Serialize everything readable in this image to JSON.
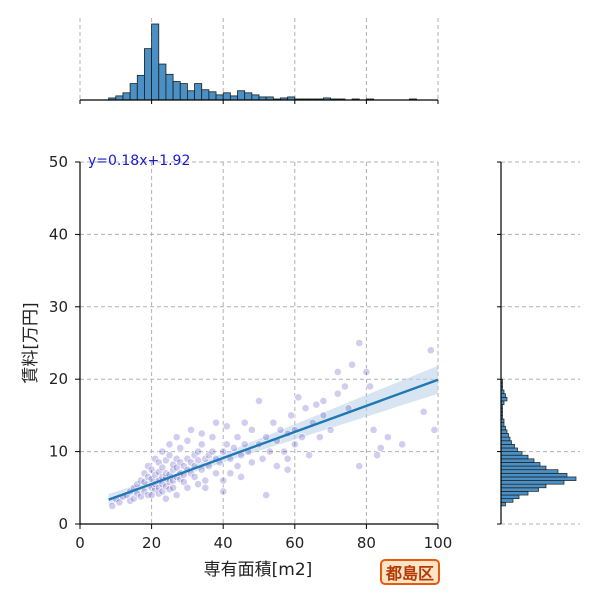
{
  "badge": {
    "label": "都島区"
  },
  "colors": {
    "hist_fill": "#4a90c4",
    "scatter": "#2a1ab0",
    "fit_line": "#1f77b4",
    "fit_band": "#bcd3ea",
    "badge_border": "#e8590c"
  },
  "chart_data": {
    "type": "scatter",
    "xlabel": "専有面積[m2]",
    "ylabel": "賃料[万円]",
    "xlim": [
      0,
      100
    ],
    "ylim": [
      0,
      50
    ],
    "xticks": [
      0,
      20,
      40,
      60,
      80,
      100
    ],
    "yticks": [
      0,
      10,
      20,
      30,
      40,
      50
    ],
    "grid": true,
    "regression": {
      "equation": "y=0.18x+1.92",
      "slope": 0.18,
      "intercept": 1.92,
      "x_range": [
        8,
        100
      ]
    },
    "x_marginal_hist": {
      "bin_edges": [
        8,
        10,
        12,
        14,
        16,
        18,
        20,
        22,
        24,
        26,
        28,
        30,
        32,
        34,
        36,
        38,
        40,
        42,
        44,
        46,
        48,
        50,
        52,
        54,
        56,
        58,
        60,
        62,
        64,
        66,
        68,
        70,
        72,
        74,
        76,
        78,
        80,
        82,
        84,
        86,
        88,
        90,
        92,
        94,
        96,
        98
      ],
      "counts": [
        2,
        4,
        7,
        16,
        24,
        50,
        74,
        35,
        25,
        18,
        16,
        9,
        16,
        10,
        8,
        5,
        7,
        4,
        9,
        7,
        5,
        3,
        3,
        1,
        2,
        3,
        1,
        1,
        1,
        1,
        2,
        1,
        1,
        0,
        1,
        0,
        1,
        0,
        0,
        0,
        0,
        0,
        1,
        0,
        0
      ]
    },
    "y_marginal_hist": {
      "bin_edges": [
        2.5,
        3.0,
        3.5,
        4.0,
        4.5,
        5.0,
        5.5,
        6.0,
        6.5,
        7.0,
        7.5,
        8.0,
        8.5,
        9.0,
        9.5,
        10.0,
        10.5,
        11.0,
        11.5,
        12.0,
        12.5,
        13.0,
        13.5,
        14.0,
        14.5,
        15.0,
        15.5,
        16.0,
        16.5,
        17.0,
        17.5,
        18.0,
        18.5,
        19.0,
        19.5,
        20.0
      ],
      "counts": [
        3,
        8,
        12,
        18,
        25,
        30,
        42,
        50,
        44,
        38,
        30,
        26,
        22,
        18,
        14,
        11,
        9,
        7,
        6,
        5,
        4,
        3,
        2,
        2,
        1,
        1,
        1,
        1,
        2,
        4,
        3,
        2,
        1,
        1,
        1
      ]
    },
    "points": [
      [
        9,
        2.5
      ],
      [
        10,
        3.5
      ],
      [
        11,
        3
      ],
      [
        12,
        3.8
      ],
      [
        13,
        4
      ],
      [
        14,
        3.2
      ],
      [
        14,
        4.5
      ],
      [
        15,
        3.5
      ],
      [
        15,
        5
      ],
      [
        16,
        4.2
      ],
      [
        16,
        5.5
      ],
      [
        17,
        3.8
      ],
      [
        17,
        6
      ],
      [
        18,
        4.5
      ],
      [
        18,
        5.8
      ],
      [
        18,
        7
      ],
      [
        19,
        4
      ],
      [
        19,
        6.5
      ],
      [
        19,
        8
      ],
      [
        20,
        5
      ],
      [
        20,
        4
      ],
      [
        20,
        6.2
      ],
      [
        20,
        7.5
      ],
      [
        21,
        4.8
      ],
      [
        21,
        5.5
      ],
      [
        21,
        6.8
      ],
      [
        21,
        9
      ],
      [
        22,
        5
      ],
      [
        22,
        4.2
      ],
      [
        22,
        6
      ],
      [
        22,
        7.2
      ],
      [
        22,
        8.5
      ],
      [
        23,
        5.5
      ],
      [
        23,
        6.5
      ],
      [
        23,
        4.5
      ],
      [
        23,
        7.8
      ],
      [
        23,
        10
      ],
      [
        24,
        5.2
      ],
      [
        24,
        6.3
      ],
      [
        24,
        7
      ],
      [
        24,
        8.8
      ],
      [
        25,
        5.8
      ],
      [
        25,
        4.8
      ],
      [
        25,
        6.8
      ],
      [
        25,
        9.5
      ],
      [
        25,
        11
      ],
      [
        26,
        6
      ],
      [
        26,
        7.5
      ],
      [
        26,
        5
      ],
      [
        26,
        8.2
      ],
      [
        27,
        6.5
      ],
      [
        27,
        7.8
      ],
      [
        27,
        9
      ],
      [
        27,
        12
      ],
      [
        28,
        6.2
      ],
      [
        28,
        7
      ],
      [
        28,
        8.5
      ],
      [
        28,
        10.5
      ],
      [
        29,
        6.8
      ],
      [
        29,
        8
      ],
      [
        29,
        5.8
      ],
      [
        30,
        7.5
      ],
      [
        30,
        9
      ],
      [
        30,
        11.5
      ],
      [
        31,
        7
      ],
      [
        31,
        8.5
      ],
      [
        31,
        13
      ],
      [
        32,
        8
      ],
      [
        32,
        9.5
      ],
      [
        32,
        6.5
      ],
      [
        33,
        8.8
      ],
      [
        33,
        10
      ],
      [
        34,
        7.5
      ],
      [
        34,
        11
      ],
      [
        34,
        12.5
      ],
      [
        35,
        9
      ],
      [
        35,
        6
      ],
      [
        36,
        9.5
      ],
      [
        36,
        8
      ],
      [
        37,
        10
      ],
      [
        37,
        12
      ],
      [
        38,
        7
      ],
      [
        38,
        9
      ],
      [
        38,
        14
      ],
      [
        39,
        8.5
      ],
      [
        40,
        10
      ],
      [
        40,
        6
      ],
      [
        41,
        11
      ],
      [
        41,
        13.5
      ],
      [
        42,
        9
      ],
      [
        42,
        7
      ],
      [
        43,
        10.5
      ],
      [
        44,
        12
      ],
      [
        44,
        8
      ],
      [
        45,
        9.5
      ],
      [
        46,
        11
      ],
      [
        46,
        14
      ],
      [
        47,
        10
      ],
      [
        48,
        8.5
      ],
      [
        48,
        13
      ],
      [
        50,
        11
      ],
      [
        50,
        17
      ],
      [
        51,
        9
      ],
      [
        52,
        12
      ],
      [
        53,
        10
      ],
      [
        54,
        14
      ],
      [
        55,
        8
      ],
      [
        55,
        11.5
      ],
      [
        56,
        13
      ],
      [
        57,
        10
      ],
      [
        58,
        12.5
      ],
      [
        58,
        9
      ],
      [
        59,
        15
      ],
      [
        60,
        11
      ],
      [
        60,
        13
      ],
      [
        61,
        17.5
      ],
      [
        62,
        12
      ],
      [
        63,
        16
      ],
      [
        64,
        9.5
      ],
      [
        65,
        14
      ],
      [
        66,
        16.5
      ],
      [
        67,
        12
      ],
      [
        68,
        17
      ],
      [
        68,
        15
      ],
      [
        70,
        13
      ],
      [
        72,
        21
      ],
      [
        72,
        18
      ],
      [
        74,
        19
      ],
      [
        75,
        16
      ],
      [
        76,
        22
      ],
      [
        78,
        25
      ],
      [
        78,
        8
      ],
      [
        80,
        21
      ],
      [
        81,
        19
      ],
      [
        82,
        13
      ],
      [
        83,
        9.5
      ],
      [
        84,
        10.5
      ],
      [
        86,
        12
      ],
      [
        90,
        11
      ],
      [
        96,
        15.5
      ],
      [
        98,
        24
      ],
      [
        99,
        13
      ],
      [
        35,
        5
      ],
      [
        30,
        5
      ],
      [
        27,
        4
      ],
      [
        24,
        3.5
      ],
      [
        33,
        5.5
      ],
      [
        40,
        4.5
      ],
      [
        45,
        6.5
      ],
      [
        52,
        4
      ],
      [
        58,
        7.5
      ]
    ]
  }
}
